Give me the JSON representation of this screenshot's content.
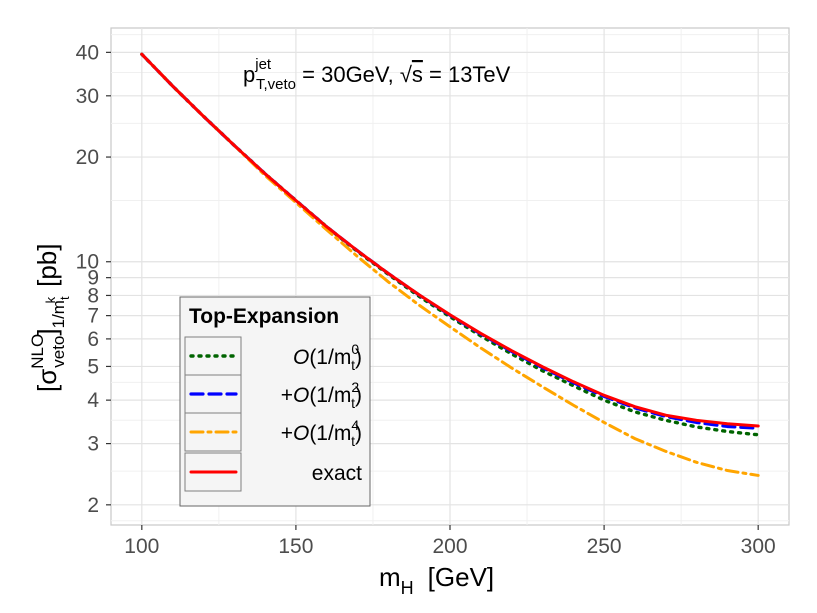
{
  "chart_data": {
    "type": "line",
    "x": [
      100,
      110,
      120,
      130,
      140,
      150,
      160,
      170,
      180,
      190,
      200,
      210,
      220,
      230,
      240,
      250,
      260,
      270,
      280,
      290,
      300
    ],
    "xlabel": "m",
    "xlabel_sub": "H",
    "xlabel_unit": "[GeV]",
    "ylabel_parts": {
      "open": "[σ",
      "sup1": "NLO",
      "sub1": "veto",
      "close": "]",
      "sub2": "1/m",
      "sub2_t": "t",
      "sub2_k": "k",
      "unit": "[pb]"
    },
    "xlim": [
      90,
      310
    ],
    "ylim": [
      1.75,
      47
    ],
    "yscale": "log",
    "xticks": [
      "100",
      "150",
      "200",
      "250",
      "300"
    ],
    "xtick_values": [
      100,
      150,
      200,
      250,
      300
    ],
    "yticks": [
      "2",
      "3",
      "4",
      "5",
      "6",
      "7",
      "8",
      "9",
      "10",
      "20",
      "30",
      "40"
    ],
    "ytick_values": [
      2,
      3,
      4,
      5,
      6,
      7,
      8,
      9,
      10,
      20,
      30,
      40
    ],
    "grid": true,
    "annotation": {
      "p": "p",
      "p_sup": "jet",
      "p_sub": "T,veto",
      "rest1": " = 30GeV, ",
      "sqrt": "√",
      "s": "s",
      "rest2": " = 13TeV"
    },
    "legend": {
      "title": "Top-Expansion",
      "position": "bottom-left"
    },
    "series": [
      {
        "name": "O(1/m_t^0)",
        "label_prefix": "",
        "label_main": "O",
        "label_open": "(1/m",
        "label_sub": "t",
        "label_sup": "0",
        "label_close": ")",
        "color": "#006400",
        "dash": "dotted",
        "values": [
          39.5,
          32.0,
          26.2,
          21.6,
          17.9,
          15.0,
          12.6,
          10.7,
          9.2,
          7.95,
          6.95,
          6.12,
          5.43,
          4.86,
          4.4,
          4.0,
          3.7,
          3.5,
          3.35,
          3.25,
          3.18
        ]
      },
      {
        "name": "+O(1/m_t^2)",
        "label_prefix": "+",
        "label_main": "O",
        "label_open": "(1/m",
        "label_sub": "t",
        "label_sup": "2",
        "label_close": ")",
        "color": "#0000ff",
        "dash": "dashed",
        "values": [
          39.5,
          32.0,
          26.2,
          21.6,
          17.9,
          15.0,
          12.6,
          10.75,
          9.25,
          8.02,
          7.02,
          6.2,
          5.52,
          4.96,
          4.49,
          4.1,
          3.8,
          3.59,
          3.45,
          3.36,
          3.32
        ]
      },
      {
        "name": "+O(1/m_t^4)",
        "label_prefix": "+",
        "label_main": "O",
        "label_open": "(1/m",
        "label_sub": "t",
        "label_sup": "4",
        "label_close": ")",
        "color": "#ffa500",
        "dash": "dashdot",
        "values": [
          39.5,
          32.0,
          26.2,
          21.6,
          17.7,
          14.8,
          12.35,
          10.35,
          8.75,
          7.5,
          6.5,
          5.65,
          4.95,
          4.37,
          3.87,
          3.45,
          3.1,
          2.85,
          2.65,
          2.51,
          2.43
        ]
      },
      {
        "name": "exact",
        "label_prefix": "",
        "label_main": "",
        "label_open": "",
        "label_sub": "",
        "label_sup": "",
        "label_close": "",
        "label_text": "exact",
        "color": "#ff0000",
        "dash": "solid",
        "values": [
          39.5,
          32.0,
          26.2,
          21.6,
          17.9,
          15.0,
          12.6,
          10.75,
          9.25,
          8.03,
          7.04,
          6.22,
          5.55,
          4.99,
          4.52,
          4.13,
          3.83,
          3.62,
          3.5,
          3.42,
          3.37
        ]
      }
    ]
  }
}
